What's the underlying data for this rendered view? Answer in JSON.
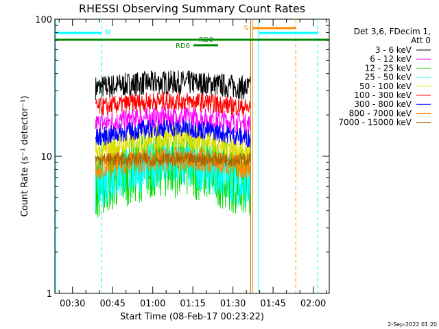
{
  "chart_data": {
    "type": "line",
    "title": "RHESSI Observing Summary Count Rates",
    "xlabel": "Start Time (08-Feb-17 00:23:22)",
    "ylabel": "Count Rate (s⁻¹ detector⁻¹)",
    "yscale": "log",
    "ylim": [
      1,
      100
    ],
    "xlim_minutes": [
      23.4,
      126.0
    ],
    "x_ticks": [
      "00:30",
      "00:45",
      "01:00",
      "01:15",
      "01:30",
      "01:45",
      "02:00"
    ],
    "x_tick_minutes": [
      30,
      45,
      60,
      75,
      90,
      105,
      120
    ],
    "y_ticks": [
      "1",
      "10",
      "100"
    ],
    "legend": {
      "header": [
        "Det 3,6, FDecim 1,",
        "Att 0"
      ],
      "placement": "right"
    },
    "grid": false,
    "series": [
      {
        "name": "3 - 6 keV",
        "color": "#000000",
        "level": 32,
        "noise": 0.09,
        "bump": 0.08
      },
      {
        "name": "6 - 12 keV",
        "color": "#ff00ff",
        "level": 17.5,
        "noise": 0.08,
        "bump": 0.1
      },
      {
        "name": "12 - 25 keV",
        "color": "#00dd00",
        "level": 6.5,
        "noise": 0.25,
        "bump": 0.35
      },
      {
        "name": "25 - 50 keV",
        "color": "#00ffff",
        "level": 6.5,
        "noise": 0.18,
        "bump": 0.35
      },
      {
        "name": "50 - 100 keV",
        "color": "#dddd00",
        "level": 11,
        "noise": 0.1,
        "bump": 0.25
      },
      {
        "name": "100 - 300 keV",
        "color": "#ff0000",
        "level": 23,
        "noise": 0.07,
        "bump": 0.1
      },
      {
        "name": "300 - 800 keV",
        "color": "#0000ff",
        "level": 14,
        "noise": 0.07,
        "bump": 0.15
      },
      {
        "name": "800 - 7000 keV",
        "color": "#ff8800",
        "level": 8.5,
        "noise": 0.09,
        "bump": 0.12
      },
      {
        "name": "7000 - 15000 keV",
        "color": "#aa6600",
        "level": 9.5,
        "noise": 0.05,
        "bump": 0.0
      }
    ],
    "data_start_minute": 38.6,
    "data_end_minute": 96.5,
    "markers": {
      "N_label": "N",
      "S_label": "S",
      "RD0_label": "RD0",
      "RD6_label": "RD6",
      "night_end_minute": 40.8,
      "night_start_minute": 121.7,
      "saa_start_minute": 97.4,
      "saa_end_minute": 113.5,
      "solar_line_minute": 99.6,
      "data_end_line_minute": 96.6
    }
  },
  "footer": {
    "date_stamp": "2-Sep-2022 01:20"
  }
}
